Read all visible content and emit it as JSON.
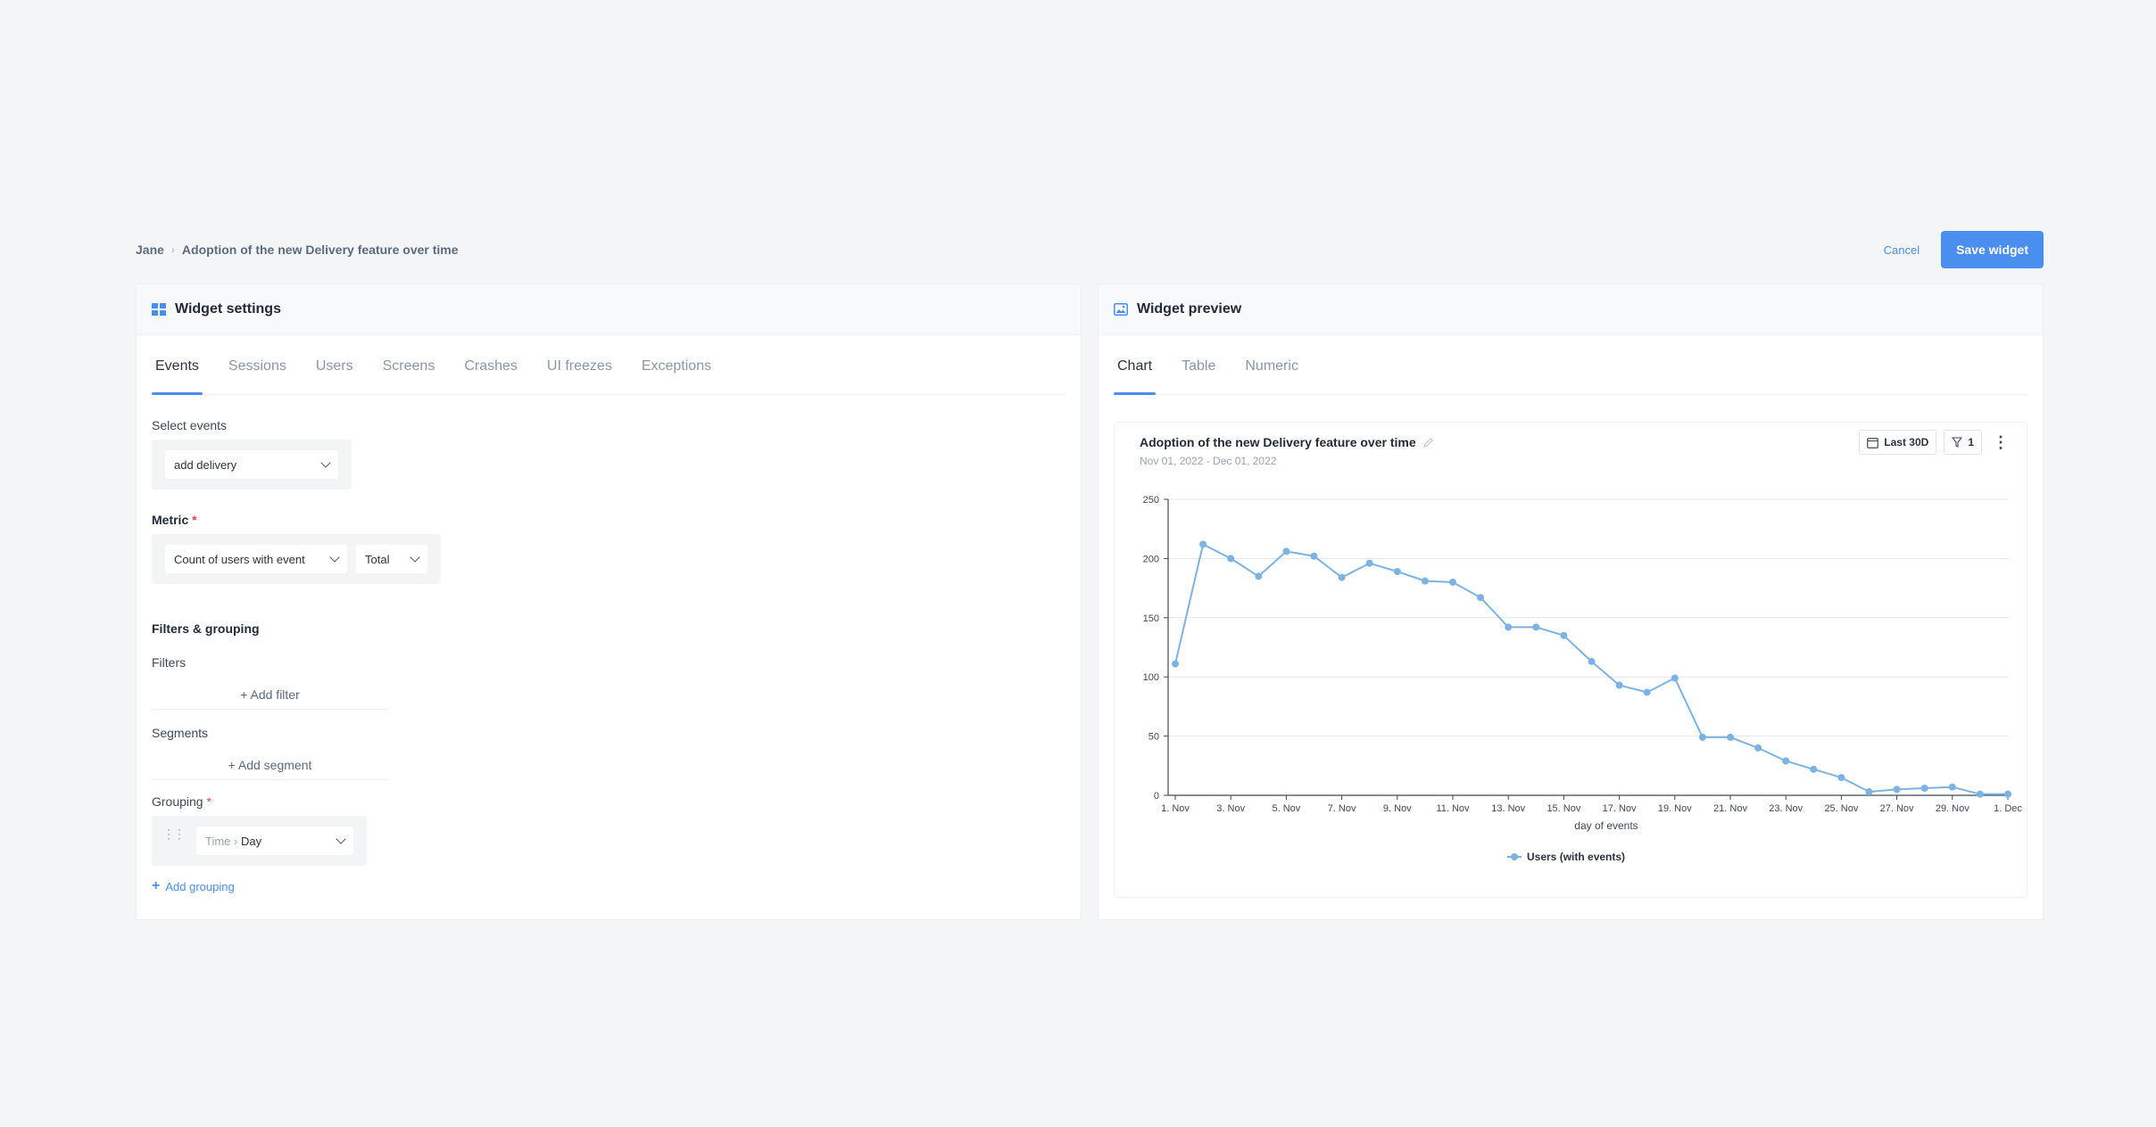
{
  "breadcrumb": {
    "root": "Jane",
    "current": "Adoption of the new Delivery feature over time"
  },
  "actions": {
    "cancel": "Cancel",
    "save": "Save widget"
  },
  "settings": {
    "title": "Widget settings",
    "tabs": [
      "Events",
      "Sessions",
      "Users",
      "Screens",
      "Crashes",
      "UI freezes",
      "Exceptions"
    ],
    "select_events_label": "Select events",
    "event_value": "add delivery",
    "metric_label": "Metric",
    "metric_value": "Count of users with event",
    "metric_agg": "Total",
    "filters_grouping_label": "Filters & grouping",
    "filters_label": "Filters",
    "add_filter": "+ Add filter",
    "segments_label": "Segments",
    "add_segment": "+ Add segment",
    "grouping_label": "Grouping",
    "grouping_prefix": "Time",
    "grouping_value": "Day",
    "add_grouping": "Add grouping",
    "required_mark": "*"
  },
  "preview": {
    "title": "Widget preview",
    "tabs": [
      "Chart",
      "Table",
      "Numeric"
    ],
    "card_title": "Adoption of the new Delivery feature over time",
    "date_range": "Nov 01, 2022 - Dec 01, 2022",
    "period_button": "Last 30D",
    "filter_count": "1"
  },
  "colors": {
    "accent": "#4a8ff0",
    "series": "#7db3e3"
  },
  "chart_data": {
    "type": "line",
    "title": "Adoption of the new Delivery feature over time",
    "xlabel": "day of events",
    "ylabel": "",
    "ylim": [
      0,
      250
    ],
    "yticks": [
      0,
      50,
      100,
      150,
      200,
      250
    ],
    "categories": [
      "1. Nov",
      "2. Nov",
      "3. Nov",
      "4. Nov",
      "5. Nov",
      "6. Nov",
      "7. Nov",
      "8. Nov",
      "9. Nov",
      "10. Nov",
      "11. Nov",
      "12. Nov",
      "13. Nov",
      "14. Nov",
      "15. Nov",
      "16. Nov",
      "17. Nov",
      "18. Nov",
      "19. Nov",
      "20. Nov",
      "21. Nov",
      "22. Nov",
      "23. Nov",
      "24. Nov",
      "25. Nov",
      "26. Nov",
      "27. Nov",
      "28. Nov",
      "29. Nov",
      "30. Nov",
      "1. Dec"
    ],
    "tick_labels": [
      "1. Nov",
      "3. Nov",
      "5. Nov",
      "7. Nov",
      "9. Nov",
      "11. Nov",
      "13. Nov",
      "15. Nov",
      "17. Nov",
      "19. Nov",
      "21. Nov",
      "23. Nov",
      "25. Nov",
      "27. Nov",
      "29. Nov",
      "1. Dec"
    ],
    "series": [
      {
        "name": "Users (with events)",
        "values": [
          111,
          212,
          200,
          185,
          206,
          202,
          184,
          196,
          189,
          181,
          180,
          167,
          142,
          142,
          135,
          113,
          93,
          87,
          99,
          49,
          49,
          40,
          29,
          22,
          15,
          3,
          5,
          6,
          7,
          1,
          1
        ]
      }
    ],
    "grid": true,
    "legend": "bottom-center"
  }
}
